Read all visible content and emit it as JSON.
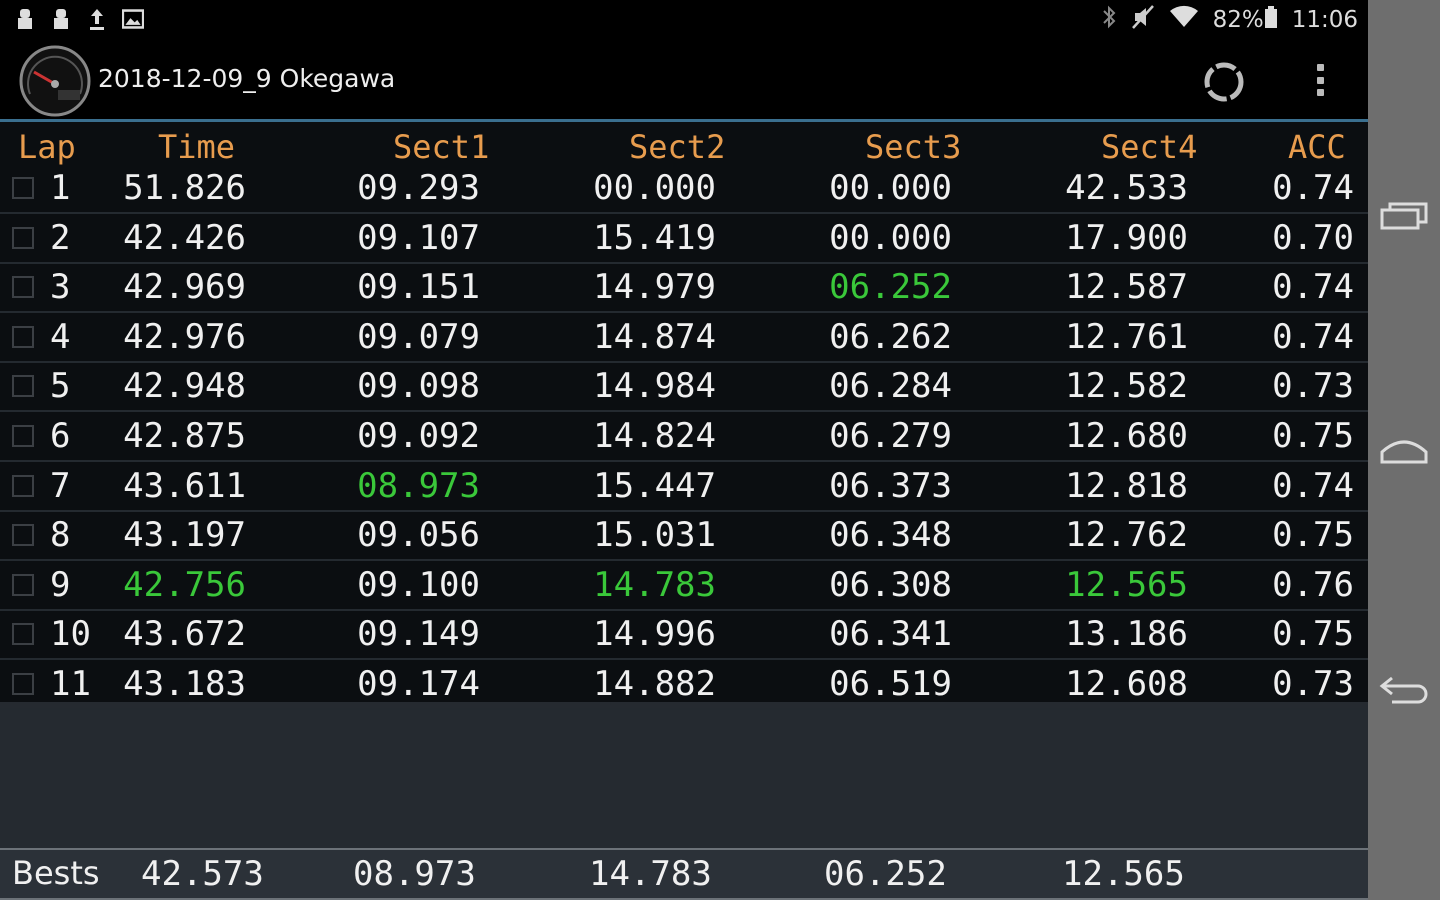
{
  "status_bar": {
    "left_icons": [
      "notification-icon",
      "notification-icon",
      "upload-icon",
      "image-icon"
    ],
    "right_icons": [
      "bluetooth-icon",
      "mute-icon",
      "wifi-icon",
      "battery-icon"
    ],
    "battery": "82%",
    "time": "11:06"
  },
  "action_bar": {
    "title": "2018-12-09_9 Okegawa",
    "logo_icon": "speedometer-icon",
    "sync_icon": "sync-icon",
    "overflow_icon": "overflow-menu-icon"
  },
  "table": {
    "headers": [
      "Lap",
      "Time",
      "Sect1",
      "Sect2",
      "Sect3",
      "Sect4",
      "ACC"
    ],
    "rows": [
      {
        "lap": "1",
        "time": "51.826",
        "s1": "09.293",
        "s2": "00.000",
        "s3": "00.000",
        "s4": "42.533",
        "acc": "0.74",
        "best": []
      },
      {
        "lap": "2",
        "time": "42.426",
        "s1": "09.107",
        "s2": "15.419",
        "s3": "00.000",
        "s4": "17.900",
        "acc": "0.70",
        "best": []
      },
      {
        "lap": "3",
        "time": "42.969",
        "s1": "09.151",
        "s2": "14.979",
        "s3": "06.252",
        "s4": "12.587",
        "acc": "0.74",
        "best": [
          "s3"
        ]
      },
      {
        "lap": "4",
        "time": "42.976",
        "s1": "09.079",
        "s2": "14.874",
        "s3": "06.262",
        "s4": "12.761",
        "acc": "0.74",
        "best": []
      },
      {
        "lap": "5",
        "time": "42.948",
        "s1": "09.098",
        "s2": "14.984",
        "s3": "06.284",
        "s4": "12.582",
        "acc": "0.73",
        "best": []
      },
      {
        "lap": "6",
        "time": "42.875",
        "s1": "09.092",
        "s2": "14.824",
        "s3": "06.279",
        "s4": "12.680",
        "acc": "0.75",
        "best": []
      },
      {
        "lap": "7",
        "time": "43.611",
        "s1": "08.973",
        "s2": "15.447",
        "s3": "06.373",
        "s4": "12.818",
        "acc": "0.74",
        "best": [
          "s1"
        ]
      },
      {
        "lap": "8",
        "time": "43.197",
        "s1": "09.056",
        "s2": "15.031",
        "s3": "06.348",
        "s4": "12.762",
        "acc": "0.75",
        "best": []
      },
      {
        "lap": "9",
        "time": "42.756",
        "s1": "09.100",
        "s2": "14.783",
        "s3": "06.308",
        "s4": "12.565",
        "acc": "0.76",
        "best": [
          "time",
          "s2",
          "s4"
        ]
      },
      {
        "lap": "10",
        "time": "43.672",
        "s1": "09.149",
        "s2": "14.996",
        "s3": "06.341",
        "s4": "13.186",
        "acc": "0.75",
        "best": []
      },
      {
        "lap": "11",
        "time": "43.183",
        "s1": "09.174",
        "s2": "14.882",
        "s3": "06.519",
        "s4": "12.608",
        "acc": "0.73",
        "best": []
      }
    ]
  },
  "bests": {
    "label": "Bests",
    "time": "42.573",
    "s1": "08.973",
    "s2": "14.783",
    "s3": "06.252",
    "s4": "12.565"
  },
  "nav_bar": {
    "icons": [
      "recent-apps-icon",
      "home-icon",
      "back-icon"
    ]
  },
  "colors": {
    "header_text": "#e79c4e",
    "best_value": "#3ac83a",
    "accent_line": "#3a6f8f"
  }
}
